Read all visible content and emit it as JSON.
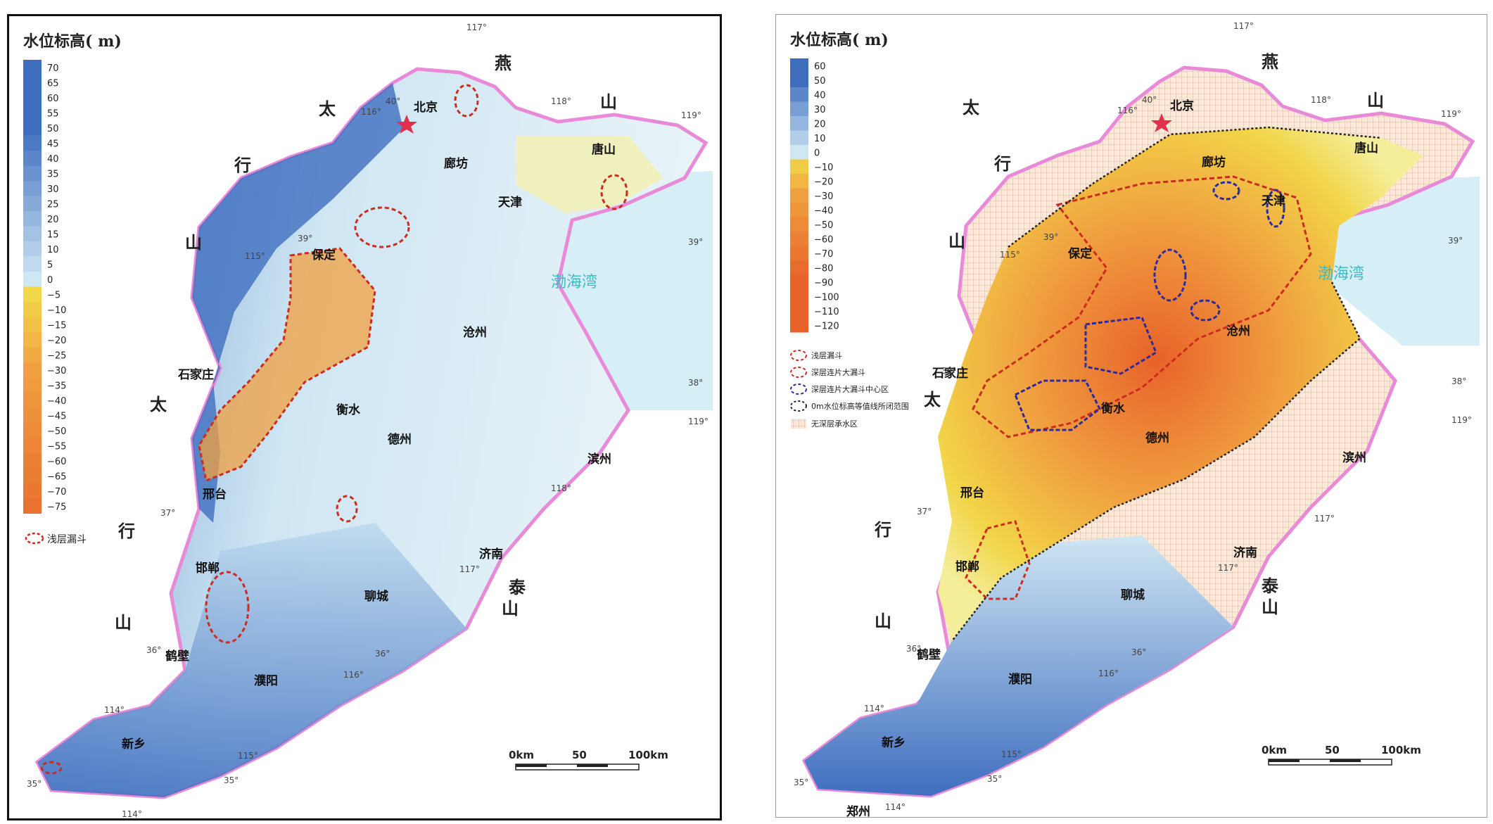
{
  "left_map": {
    "legend_title": "水位标高( m)",
    "legend_levels": [
      "70",
      "65",
      "60",
      "55",
      "50",
      "45",
      "40",
      "35",
      "30",
      "25",
      "20",
      "15",
      "10",
      "5",
      "0",
      "−5",
      "−10",
      "−15",
      "−20",
      "−25",
      "−30",
      "−35",
      "−40",
      "−45",
      "−50",
      "−55",
      "−60",
      "−65",
      "−70",
      "−75"
    ],
    "legend_symbols": [
      "浅层漏斗"
    ],
    "mountain_chars": [
      "燕",
      "山",
      "太",
      "行",
      "山",
      "太",
      "行",
      "山",
      "泰",
      "山"
    ],
    "cities": [
      "北京",
      "廊坊",
      "唐山",
      "天津",
      "保定",
      "沧州",
      "石家庄",
      "衡水",
      "德州",
      "滨州",
      "邢台",
      "济南",
      "邯郸",
      "聊城",
      "鹤壁",
      "濮阳",
      "新乡"
    ],
    "sea_label": "渤海湾",
    "coords": [
      "117°",
      "40°",
      "116°",
      "118°",
      "119°",
      "39°",
      "115°",
      "39°",
      "38°",
      "38°",
      "119°",
      "37°",
      "118°",
      "117°",
      "36°",
      "36°",
      "116°",
      "114°",
      "115°",
      "35°",
      "35°",
      "114°"
    ],
    "scale": [
      "0km",
      "50",
      "100km"
    ]
  },
  "right_map": {
    "legend_title": "水位标高( m)",
    "legend_levels": [
      "60",
      "50",
      "40",
      "30",
      "20",
      "10",
      "0",
      "−10",
      "−20",
      "−30",
      "−40",
      "−50",
      "−60",
      "−70",
      "−80",
      "−90",
      "−100",
      "−110",
      "−120"
    ],
    "legend_symbols": [
      "浅层漏斗",
      "深层连片大漏斗",
      "深层连片大漏斗中心区",
      "0m水位标高等值线所闭范围",
      "无深层承水区"
    ],
    "mountain_chars": [
      "燕",
      "山",
      "太",
      "行",
      "山",
      "太",
      "行",
      "山",
      "泰",
      "山"
    ],
    "cities": [
      "北京",
      "廊坊",
      "唐山",
      "天津",
      "保定",
      "沧州",
      "石家庄",
      "衡水",
      "德州",
      "滨州",
      "邢台",
      "济南",
      "邯郸",
      "聊城",
      "鹤壁",
      "濮阳",
      "新乡",
      "郑州"
    ],
    "sea_label": "渤海湾",
    "coords": [
      "117°",
      "40°",
      "116°",
      "118°",
      "119°",
      "39°",
      "115°",
      "39°",
      "38°",
      "38°",
      "119°",
      "37°",
      "117°",
      "117°",
      "36°",
      "36°",
      "116°",
      "114°",
      "115°",
      "35°",
      "35°",
      "114°"
    ],
    "scale": [
      "0km",
      "50",
      "100km"
    ]
  },
  "colors": {
    "deep_blue": "#3f6ebf",
    "light_blue": "#cfe6f3",
    "pale": "#eef4e6",
    "yellow": "#f2e34a",
    "orange": "#f0a040",
    "deep_orange": "#e8622a",
    "funnel_red": "#cc2b1e",
    "center_blue": "#2b2b9e",
    "border_pink": "#e88ad8",
    "sea": "#d6eef6"
  }
}
